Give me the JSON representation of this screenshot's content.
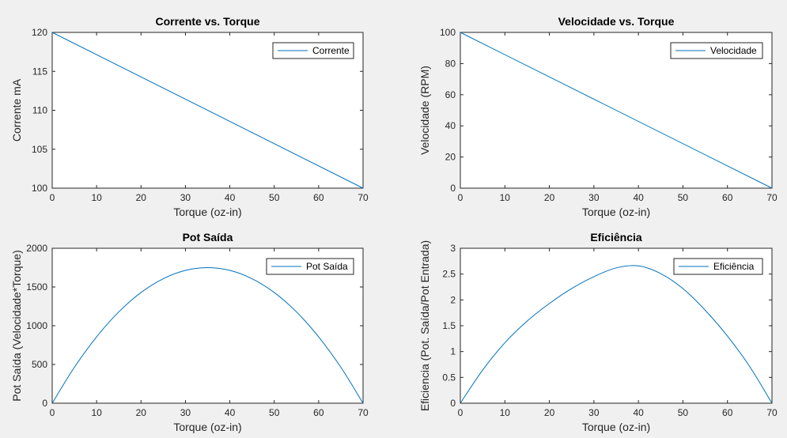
{
  "chart_data": [
    {
      "type": "line",
      "title": "Corrente vs. Torque",
      "xlabel": "Torque (oz-in)",
      "ylabel": "Corrente mA",
      "xlim": [
        0,
        70
      ],
      "ylim": [
        100,
        120
      ],
      "xticks": [
        "0",
        "10",
        "20",
        "30",
        "40",
        "50",
        "60",
        "70"
      ],
      "yticks": [
        "100",
        "105",
        "110",
        "115",
        "120"
      ],
      "legend": "top-right",
      "grid": false,
      "series": [
        {
          "name": "Corrente",
          "color": "#0072BD",
          "x": [
            0,
            70
          ],
          "y": [
            120,
            100
          ]
        }
      ]
    },
    {
      "type": "line",
      "title": "Velocidade vs. Torque",
      "xlabel": "Torque (oz-in)",
      "ylabel": "Velocidade (RPM)",
      "xlim": [
        0,
        70
      ],
      "ylim": [
        0,
        100
      ],
      "xticks": [
        "0",
        "10",
        "20",
        "30",
        "40",
        "50",
        "60",
        "70"
      ],
      "yticks": [
        "0",
        "20",
        "40",
        "60",
        "80",
        "100"
      ],
      "legend": "top-right",
      "grid": false,
      "series": [
        {
          "name": "Velocidade",
          "color": "#0072BD",
          "x": [
            0,
            70
          ],
          "y": [
            100,
            0
          ]
        }
      ]
    },
    {
      "type": "line",
      "title": "Pot Saída",
      "xlabel": "Torque (oz-in)",
      "ylabel": "Pot Saída (Velocidade*Torque)",
      "xlim": [
        0,
        70
      ],
      "ylim": [
        0,
        2000
      ],
      "xticks": [
        "0",
        "10",
        "20",
        "30",
        "40",
        "50",
        "60",
        "70"
      ],
      "yticks": [
        "0",
        "500",
        "1000",
        "1500",
        "2000"
      ],
      "legend": "top-right",
      "grid": false,
      "series": [
        {
          "name": "Pot Saída",
          "color": "#0072BD",
          "x": [
            0,
            5,
            10,
            15,
            20,
            25,
            30,
            35,
            40,
            45,
            50,
            55,
            60,
            65,
            70
          ],
          "y": [
            0,
            464,
            857,
            1179,
            1429,
            1607,
            1714,
            1750,
            1714,
            1607,
            1429,
            1179,
            857,
            464,
            0
          ]
        }
      ]
    },
    {
      "type": "line",
      "title": "Eficiência",
      "xlabel": "Torque (oz-in)",
      "ylabel": "Eficiencia (Pot. Saída/Pot Entrada)",
      "xlim": [
        0,
        70
      ],
      "ylim": [
        0,
        3
      ],
      "xticks": [
        "0",
        "10",
        "20",
        "30",
        "40",
        "50",
        "60",
        "70"
      ],
      "yticks": [
        "0",
        "0.5",
        "1",
        "1.5",
        "2",
        "2.5",
        "3"
      ],
      "legend": "top-right",
      "grid": false,
      "series": [
        {
          "name": "Eficiência",
          "color": "#0072BD",
          "x": [
            0,
            5,
            10,
            15,
            20,
            25,
            30,
            35,
            40,
            45,
            50,
            55,
            60,
            65,
            70
          ],
          "y": [
            0,
            0.64,
            1.17,
            1.59,
            1.93,
            2.22,
            2.45,
            2.62,
            2.66,
            2.51,
            2.22,
            1.8,
            1.3,
            0.71,
            0
          ]
        }
      ]
    }
  ]
}
